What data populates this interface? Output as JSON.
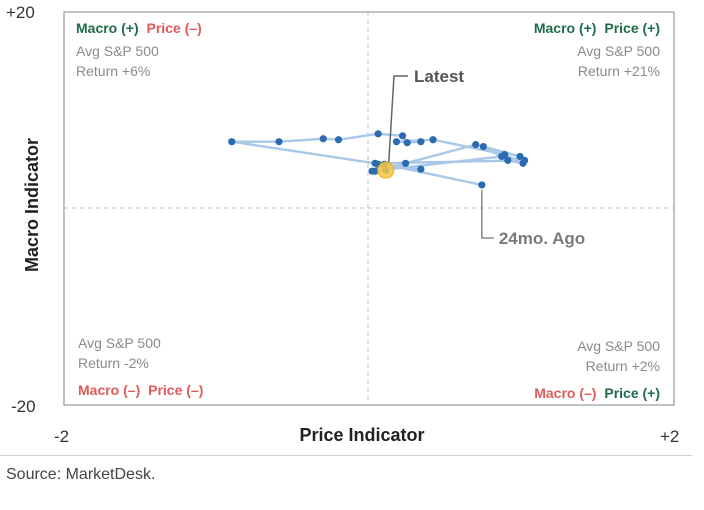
{
  "chart_data": {
    "type": "scatter",
    "xlabel": "Price Indicator",
    "ylabel": "Macro Indicator",
    "xlim": [
      -2,
      2
    ],
    "ylim": [
      -20,
      20
    ],
    "x_tick_labels": [
      "-2",
      "+2"
    ],
    "y_tick_labels": [
      "+20",
      "-20"
    ],
    "grid": false,
    "series": [
      {
        "values_xy": [
          [
            0.74,
            2.4
          ],
          [
            0.1,
            4.5
          ],
          [
            0.34,
            4.0
          ],
          [
            0.06,
            4.5
          ],
          [
            0.04,
            3.8
          ],
          [
            0.24,
            4.6
          ],
          [
            0.7,
            6.5
          ],
          [
            0.99,
            5.3
          ],
          [
            0.75,
            6.3
          ],
          [
            0.91,
            4.9
          ],
          [
            1.01,
            4.6
          ],
          [
            0.89,
            5.5
          ],
          [
            0.42,
            7.0
          ],
          [
            0.18,
            6.8
          ],
          [
            0.34,
            6.8
          ],
          [
            0.25,
            6.7
          ],
          [
            0.22,
            7.4
          ],
          [
            0.06,
            7.6
          ],
          [
            -0.2,
            7.0
          ],
          [
            -0.3,
            7.1
          ],
          [
            -0.59,
            6.8
          ],
          [
            -0.9,
            6.8
          ],
          [
            0.04,
            4.6
          ],
          [
            1.02,
            4.9
          ],
          [
            0.87,
            5.3
          ],
          [
            0.02,
            3.8
          ],
          [
            0.11,
            3.9
          ]
        ]
      }
    ],
    "latest": [
      0.11,
      3.9
    ],
    "annotations": [
      {
        "text": "Latest",
        "color": "#555555"
      },
      {
        "text": "24mo. Ago",
        "color": "#7a7a7a"
      }
    ],
    "quadrants": {
      "top_left": {
        "macro_label": "Macro (+)",
        "price_label": "Price (–)",
        "line1": "Avg S&P 500",
        "line2": "Return +6%"
      },
      "top_right": {
        "macro_label": "Macro (+)",
        "price_label": "Price (+)",
        "line1": "Avg S&P 500",
        "line2": "Return +21%"
      },
      "bottom_left": {
        "macro_label": "Macro (–)",
        "price_label": "Price (–)",
        "line1": "Avg S&P 500",
        "line2": "Return -2%"
      },
      "bottom_right": {
        "macro_label": "Macro (–)",
        "price_label": "Price (+)",
        "line1": "Avg S&P 500",
        "line2": "Return +2%"
      }
    },
    "colors": {
      "positive": "#1e6b4a",
      "negative": "#e05a5a",
      "line": "#a9c8e8",
      "point": "#2b6cb0",
      "latest": "#f5c842"
    }
  },
  "source": "Source: MarketDesk."
}
